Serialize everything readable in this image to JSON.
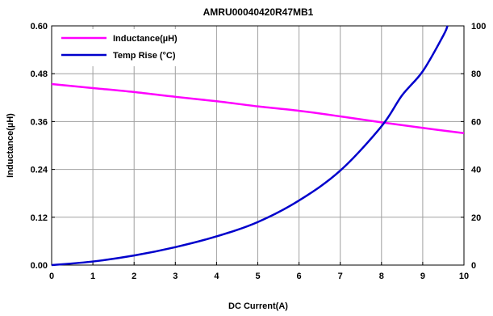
{
  "chart_data": {
    "type": "line",
    "title": "AMRU00040420R47MB1",
    "xlabel": "DC Current(A)",
    "ylabel": "Inductance(µH)",
    "y2label": "",
    "xlim": [
      0,
      10
    ],
    "ylim": [
      0,
      0.6
    ],
    "y2lim": [
      0,
      100
    ],
    "x_ticks": [
      "0",
      "1",
      "2",
      "3",
      "4",
      "5",
      "6",
      "7",
      "8",
      "9",
      "10"
    ],
    "y_ticks": [
      "0.00",
      "0.12",
      "0.24",
      "0.36",
      "0.48",
      "0.60"
    ],
    "y2_ticks": [
      "0",
      "20",
      "40",
      "60",
      "80",
      "100"
    ],
    "grid": true,
    "legend_position": "top-left",
    "series": [
      {
        "name": "Inductance(µH)",
        "axis": "left",
        "color": "#ff00ff",
        "x": [
          0,
          1,
          2,
          3,
          4,
          5,
          6,
          7,
          8,
          9,
          10
        ],
        "y": [
          0.454,
          0.444,
          0.434,
          0.422,
          0.411,
          0.398,
          0.387,
          0.373,
          0.358,
          0.344,
          0.331
        ]
      },
      {
        "name": "Temp Rise (°C)",
        "axis": "right",
        "color": "#0000cc",
        "x": [
          0,
          1,
          2,
          3,
          4,
          5,
          6,
          7,
          8,
          8.5,
          9,
          9.5,
          9.6
        ],
        "y": [
          0,
          1.5,
          4,
          7.5,
          12,
          18,
          27,
          39.5,
          58,
          71,
          81,
          96,
          100
        ]
      }
    ]
  }
}
